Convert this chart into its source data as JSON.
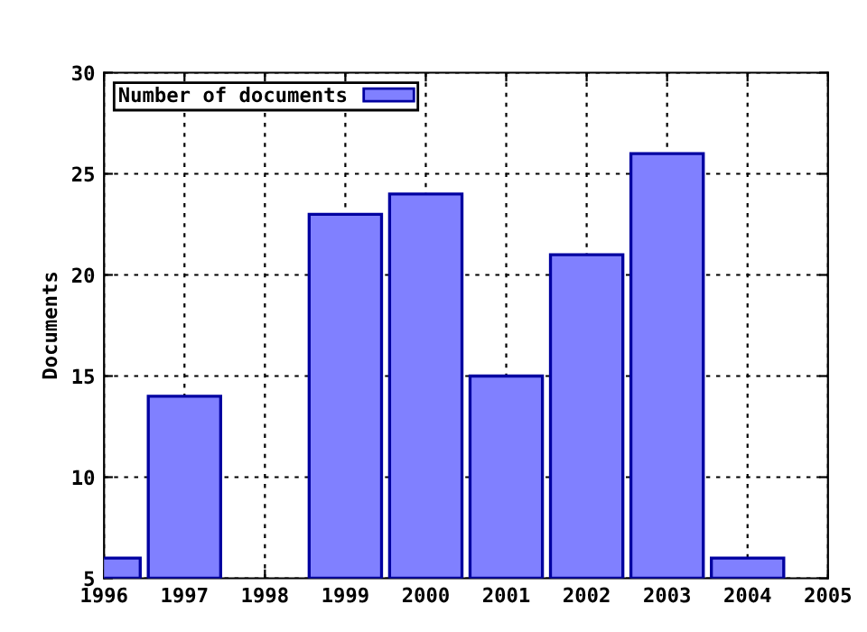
{
  "chart_data": {
    "type": "bar",
    "ylabel": "Documents",
    "x": [
      1996,
      1997,
      1998,
      1999,
      2000,
      2001,
      2002,
      2003,
      2004
    ],
    "series": [
      {
        "name": "Number of documents",
        "color": "#8080ff",
        "values": [
          6,
          14,
          null,
          23,
          24,
          15,
          21,
          26,
          6
        ]
      }
    ],
    "xlim": [
      1996,
      2005
    ],
    "xticks": [
      1996,
      1997,
      1998,
      1999,
      2000,
      2001,
      2002,
      2003,
      2004,
      2005
    ],
    "ylim": [
      5,
      30
    ],
    "yticks": [
      5,
      10,
      15,
      20,
      25,
      30
    ],
    "grid": true,
    "legend": "top left"
  }
}
